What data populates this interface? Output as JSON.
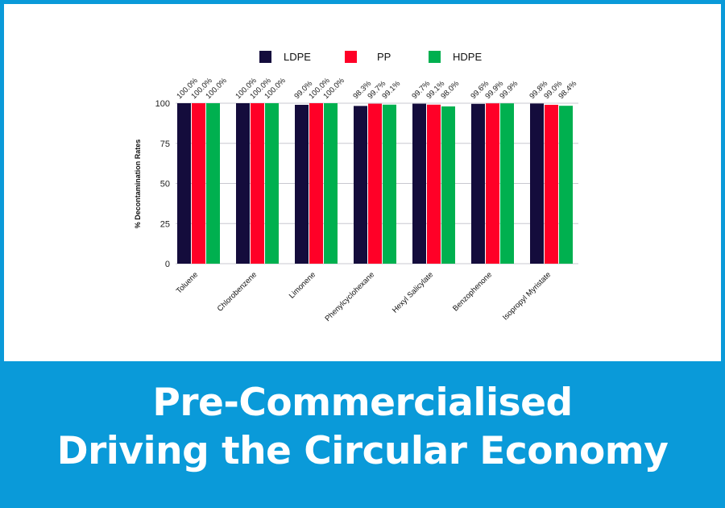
{
  "chart_data": {
    "type": "bar",
    "title": "",
    "xlabel": "",
    "ylabel": "% Decontamination Rates",
    "ylim": [
      0,
      100
    ],
    "yticks": [
      0,
      25,
      50,
      75,
      100
    ],
    "legend_position": "top-center",
    "grid": true,
    "categories": [
      "Toluene",
      "Chlorobenzene",
      "Limonene",
      "Phenylcyclohexane",
      "Hexyl Salicylate",
      "Benzophenone",
      "Isopropyl Myristate"
    ],
    "series": [
      {
        "name": "LDPE",
        "color": "#140c3c",
        "values": [
          100.0,
          100.0,
          99.0,
          98.3,
          99.7,
          99.6,
          99.8
        ]
      },
      {
        "name": "PP",
        "color": "#ff0027",
        "values": [
          100.0,
          100.0,
          100.0,
          99.7,
          99.1,
          99.9,
          99.0
        ]
      },
      {
        "name": "HDPE",
        "color": "#00b04f",
        "values": [
          100.0,
          100.0,
          100.0,
          99.1,
          98.0,
          99.9,
          98.4
        ]
      }
    ]
  },
  "banner": {
    "line1": "Pre-Commercialised",
    "line2": "Driving the Circular Economy"
  }
}
